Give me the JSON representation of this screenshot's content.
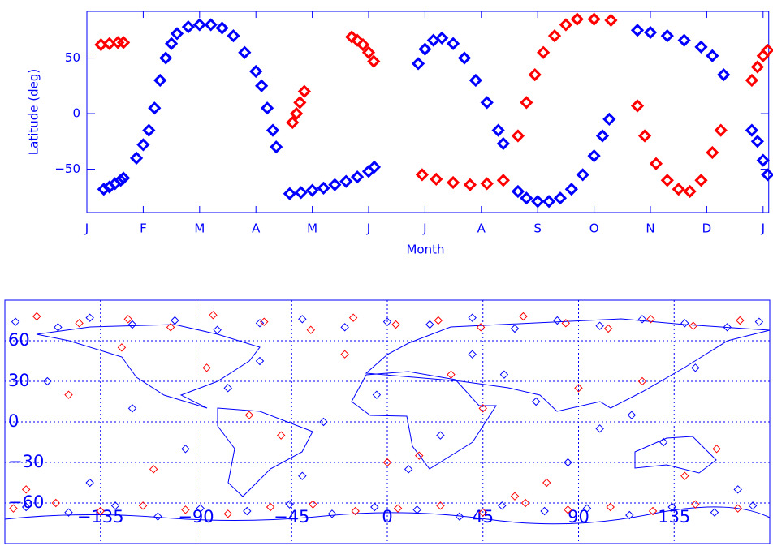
{
  "chart_data": [
    {
      "type": "scatter",
      "y_label": "Latitude (deg)",
      "x_label": "Month",
      "xlim": [
        0,
        12.1
      ],
      "ylim": [
        -89,
        92
      ],
      "xticks": [
        {
          "value": 0,
          "label": "J"
        },
        {
          "value": 1,
          "label": "F"
        },
        {
          "value": 2,
          "label": "M"
        },
        {
          "value": 3,
          "label": "A"
        },
        {
          "value": 4,
          "label": "M"
        },
        {
          "value": 5,
          "label": "J"
        },
        {
          "value": 6,
          "label": "J"
        },
        {
          "value": 7,
          "label": "A"
        },
        {
          "value": 8,
          "label": "S"
        },
        {
          "value": 9,
          "label": "O"
        },
        {
          "value": 10,
          "label": "N"
        },
        {
          "value": 11,
          "label": "D"
        },
        {
          "value": 12,
          "label": "J"
        }
      ],
      "yticks": [
        {
          "value": -50,
          "label": "−50"
        },
        0,
        50
      ],
      "series": [
        {
          "color": "#0000ff",
          "x": [
            0.3,
            0.4,
            0.5,
            0.6,
            0.65,
            0.88,
            1.0,
            1.1,
            1.2,
            1.3,
            1.4,
            1.5,
            1.6,
            1.8,
            2.0,
            2.2,
            2.4,
            2.6,
            2.8,
            3.0,
            3.1,
            3.2,
            3.3,
            3.36,
            3.6,
            3.8,
            4.0,
            4.2,
            4.4,
            4.6,
            4.8,
            5.0,
            5.1,
            5.88,
            6.0,
            6.15,
            6.3,
            6.5,
            6.7,
            6.9,
            7.1,
            7.3,
            7.39,
            7.65,
            7.8,
            8.0,
            8.2,
            8.4,
            8.6,
            8.8,
            9.0,
            9.15,
            9.27,
            9.77,
            10.0,
            10.3,
            10.6,
            10.9,
            11.1,
            11.3,
            11.8,
            11.9,
            12.0,
            12.08
          ],
          "values": [
            -68,
            -66,
            -63,
            -60,
            -58,
            -40,
            -28,
            -15,
            5,
            30,
            50,
            63,
            72,
            78,
            80,
            80,
            77,
            70,
            55,
            38,
            25,
            5,
            -15,
            -30,
            -72,
            -71,
            -69,
            -67,
            -64,
            -61,
            -57,
            -52,
            -48,
            45,
            58,
            66,
            68,
            63,
            50,
            30,
            10,
            -15,
            -27,
            -70,
            -76,
            -79,
            -79,
            -76,
            -68,
            -55,
            -38,
            -20,
            -5,
            75,
            73,
            70,
            66,
            60,
            52,
            35,
            -15,
            -25,
            -42,
            -55
          ]
        },
        {
          "color": "#ff0000",
          "x": [
            0.25,
            0.4,
            0.55,
            0.65,
            3.65,
            3.72,
            3.78,
            3.86,
            4.7,
            4.8,
            4.9,
            5.0,
            5.09,
            5.95,
            6.2,
            6.5,
            6.8,
            7.1,
            7.39,
            7.65,
            7.8,
            7.95,
            8.1,
            8.3,
            8.5,
            8.7,
            9.0,
            9.3,
            9.77,
            9.9,
            10.1,
            10.3,
            10.5,
            10.7,
            10.9,
            11.1,
            11.25,
            11.8,
            11.9,
            12.0,
            12.08
          ],
          "values": [
            62,
            63,
            64,
            64,
            -8,
            0,
            10,
            20,
            69,
            66,
            62,
            55,
            47,
            -55,
            -59,
            -62,
            -64,
            -63,
            -60,
            -20,
            10,
            35,
            55,
            70,
            80,
            85,
            85,
            84,
            7,
            -20,
            -45,
            -60,
            -68,
            -70,
            -60,
            -35,
            -15,
            30,
            42,
            52,
            57
          ]
        }
      ]
    },
    {
      "type": "map",
      "grid": true,
      "xlim": [
        -180,
        180
      ],
      "ylim": [
        -90,
        90
      ],
      "xticks": [
        {
          "value": -135,
          "label": "−135"
        },
        {
          "value": -90,
          "label": "−90"
        },
        {
          "value": -45,
          "label": "−45"
        },
        0,
        45,
        90,
        135
      ],
      "yticks": [
        {
          "value": -60,
          "label": "−60"
        },
        {
          "value": -30,
          "label": "−30"
        },
        0,
        30,
        60
      ],
      "series": [
        {
          "color": "#0000ff",
          "x": [
            -175,
            -155,
            -140,
            -120,
            -100,
            -80,
            -60,
            -40,
            -20,
            0,
            20,
            40,
            60,
            80,
            100,
            120,
            140,
            160,
            175,
            -170,
            -150,
            -128,
            -108,
            -88,
            -66,
            -46,
            -26,
            -6,
            14,
            34,
            54,
            74,
            94,
            114,
            134,
            154,
            172,
            -160,
            -120,
            -95,
            -60,
            -40,
            -5,
            25,
            55,
            85,
            115,
            145,
            165,
            -140,
            -75,
            10,
            70,
            130,
            -30,
            40,
            100
          ],
          "values": [
            74,
            70,
            77,
            72,
            75,
            68,
            73,
            76,
            70,
            74,
            72,
            77,
            69,
            75,
            71,
            76,
            73,
            70,
            74,
            -63,
            -67,
            -62,
            -70,
            -64,
            -66,
            -61,
            -68,
            -63,
            -65,
            -70,
            -62,
            -66,
            -64,
            -69,
            -63,
            -67,
            -62,
            30,
            10,
            -20,
            45,
            -40,
            20,
            -10,
            35,
            -30,
            5,
            40,
            -50,
            -45,
            25,
            -35,
            15,
            -15,
            0,
            50,
            -5
          ]
        },
        {
          "color": "#ff0000",
          "x": [
            -165,
            -145,
            -122,
            -102,
            -82,
            -58,
            -36,
            -16,
            4,
            24,
            44,
            64,
            84,
            104,
            124,
            144,
            166,
            -176,
            -156,
            -135,
            -115,
            -95,
            -75,
            -55,
            -35,
            -15,
            5,
            25,
            45,
            65,
            85,
            105,
            125,
            145,
            165,
            -150,
            -110,
            -85,
            -50,
            -20,
            15,
            45,
            75,
            120,
            155,
            -170,
            -65,
            30,
            90,
            140,
            -125,
            0,
            60
          ],
          "values": [
            78,
            73,
            76,
            70,
            79,
            74,
            68,
            77,
            72,
            75,
            70,
            78,
            73,
            69,
            76,
            71,
            75,
            -64,
            -60,
            -66,
            -62,
            -65,
            -68,
            -63,
            -61,
            -66,
            -64,
            -62,
            -67,
            -60,
            -65,
            -63,
            -66,
            -61,
            -64,
            20,
            -35,
            40,
            -10,
            50,
            -25,
            10,
            -45,
            30,
            -20,
            -50,
            5,
            35,
            25,
            -40,
            55,
            -30,
            -55
          ]
        }
      ]
    }
  ]
}
